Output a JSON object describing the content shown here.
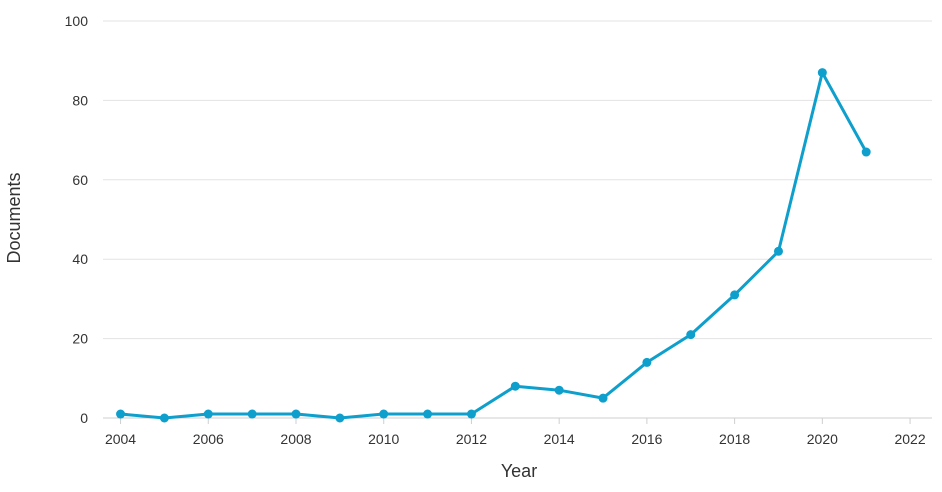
{
  "chart_data": {
    "type": "line",
    "title": "",
    "xlabel": "Year",
    "ylabel": "Documents",
    "xlim": [
      2003.6,
      2022.5
    ],
    "ylim": [
      0,
      100
    ],
    "x_ticks": [
      2004,
      2006,
      2008,
      2010,
      2012,
      2014,
      2016,
      2018,
      2020,
      2022
    ],
    "y_ticks": [
      0,
      20,
      40,
      60,
      80,
      100
    ],
    "grid": "horizontal",
    "legend": "none",
    "colors": {
      "series": "#0e9fcc",
      "grid": "#e3e3e3",
      "axis": "#cfcfcf",
      "text": "#333333"
    },
    "series": [
      {
        "x": [
          2004,
          2005,
          2006,
          2007,
          2008,
          2009,
          2010,
          2011,
          2012,
          2013,
          2014,
          2015,
          2016,
          2017,
          2018,
          2019,
          2020,
          2021
        ],
        "values": [
          1,
          0,
          1,
          1,
          1,
          0,
          1,
          1,
          1,
          8,
          7,
          5,
          14,
          21,
          31,
          42,
          87,
          67
        ]
      }
    ]
  }
}
